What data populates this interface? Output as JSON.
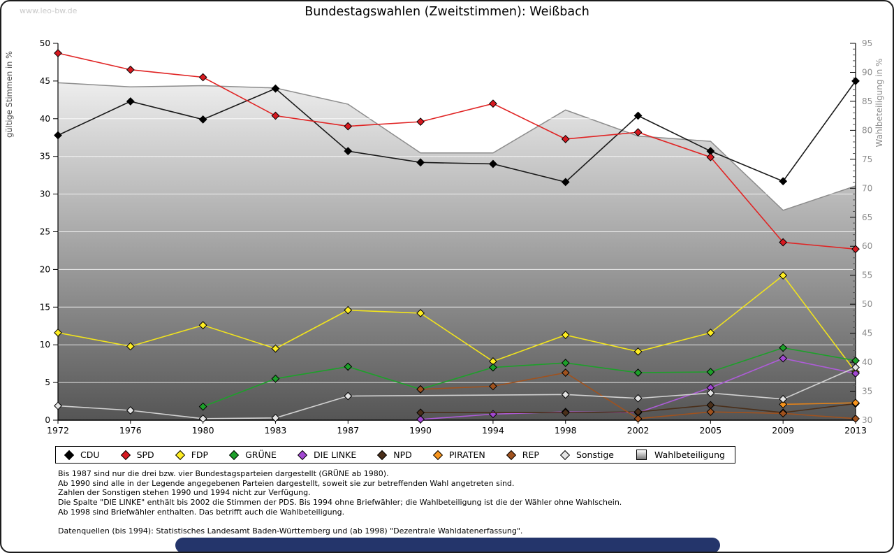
{
  "page": {
    "watermark": "www.leo-bw.de",
    "title": "Bundestagswahlen (Zweitstimmen): Weißbach",
    "bottom_bar_color": "#24356b"
  },
  "chart_data": {
    "type": "line",
    "title": "Bundestagswahlen (Zweitstimmen): Weißbach",
    "x_categories": [
      1972,
      1976,
      1980,
      1983,
      1987,
      1990,
      1994,
      1998,
      2002,
      2005,
      2009,
      2013
    ],
    "left_axis": {
      "label": "gültige Stimmen in %",
      "min": 0,
      "max": 50,
      "step": 5
    },
    "right_axis": {
      "label": "Wahlbeteiligung in %",
      "min": 30,
      "max": 95,
      "step": 5
    },
    "grid": "horizontal-white",
    "legend_position": "bottom-box",
    "turnout": {
      "name": "Wahlbeteiligung",
      "axis": "right",
      "edge_color": "#8c8c8c",
      "fill_top": "#ffffff",
      "fill_bottom": "#555555",
      "values": [
        88.2,
        87.5,
        87.7,
        87.3,
        84.5,
        76.1,
        76.1,
        83.5,
        79.0,
        78.1,
        66.2,
        70.4
      ]
    },
    "series": [
      {
        "name": "CDU",
        "color": "#000000",
        "line": "#1a1a1a",
        "values": [
          37.8,
          42.3,
          39.9,
          44.0,
          35.7,
          34.2,
          34.0,
          31.6,
          40.4,
          35.7,
          31.7,
          45.0
        ]
      },
      {
        "name": "SPD",
        "color": "#d71920",
        "line": "#e02424",
        "values": [
          48.7,
          46.5,
          45.5,
          40.4,
          39.0,
          39.6,
          42.0,
          37.3,
          38.2,
          34.9,
          23.6,
          22.7
        ]
      },
      {
        "name": "FDP",
        "color": "#ffee22",
        "line": "#f2e41c",
        "values": [
          11.6,
          9.8,
          12.6,
          9.5,
          14.6,
          14.2,
          7.8,
          11.3,
          9.1,
          11.6,
          19.2,
          6.4
        ]
      },
      {
        "name": "GRÜNE",
        "color": "#1da02a",
        "line": "#1da02a",
        "values": [
          null,
          null,
          1.8,
          5.5,
          7.1,
          4.1,
          7.0,
          7.6,
          6.3,
          6.4,
          9.6,
          7.9
        ]
      },
      {
        "name": "DIE LINKE",
        "color": "#a248d2",
        "line": "#ae5cd8",
        "values": [
          null,
          null,
          null,
          null,
          null,
          0.1,
          0.8,
          1.1,
          1.0,
          4.3,
          8.2,
          6.2
        ]
      },
      {
        "name": "NPD",
        "color": "#4a2f1a",
        "line": "#4a2f1a",
        "values": [
          null,
          null,
          null,
          null,
          null,
          1.0,
          null,
          1.0,
          1.1,
          2.0,
          1.0,
          2.2
        ]
      },
      {
        "name": "PIRATEN",
        "color": "#f7941d",
        "line": "#e2821a",
        "values": [
          null,
          null,
          null,
          null,
          null,
          null,
          null,
          null,
          null,
          null,
          2.1,
          2.3
        ]
      },
      {
        "name": "REP",
        "color": "#a0521e",
        "line": "#a0521e",
        "values": [
          null,
          null,
          null,
          null,
          null,
          4.1,
          4.5,
          6.3,
          0.2,
          1.1,
          0.9,
          0.2
        ]
      },
      {
        "name": "Sonstige",
        "color": "#e4e4e4",
        "line": "#d2d2d2",
        "values": [
          1.9,
          1.3,
          0.2,
          0.3,
          3.2,
          null,
          null,
          3.4,
          2.9,
          3.6,
          2.8,
          7.0
        ]
      }
    ]
  },
  "footnotes": [
    "Bis 1987 sind nur die drei bzw. vier Bundestagsparteien dargestellt (GRÜNE ab 1980).",
    "Ab 1990 sind alle in der Legende angegebenen Parteien dargestellt, soweit sie zur betreffenden Wahl angetreten sind.",
    "Zahlen der Sonstigen stehen 1990 und 1994 nicht zur Verfügung.",
    "Die Spalte \"DIE LINKE\" enthält bis 2002 die Stimmen der PDS. Bis 1994 ohne Briefwähler; die Wahlbeteiligung ist die der Wähler ohne Wahlschein.",
    "Ab 1998 sind Briefwähler enthalten. Das betrifft auch die Wahlbeteiligung.",
    "",
    "Datenquellen (bis 1994): Statistisches Landesamt Baden-Württemberg und (ab 1998) \"Dezentrale Wahldatenerfassung\"."
  ]
}
